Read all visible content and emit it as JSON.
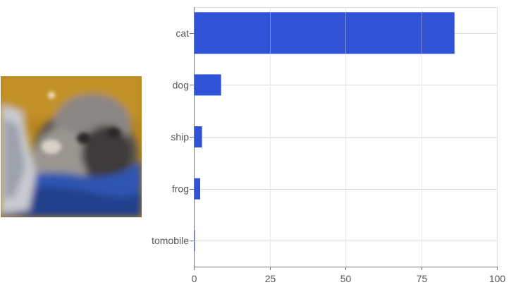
{
  "chart_data": {
    "type": "bar",
    "orientation": "horizontal",
    "categories": [
      "cat",
      "dog",
      "ship",
      "frog",
      "tomobile"
    ],
    "values": [
      86,
      9,
      2.7,
      2.1,
      0.3
    ],
    "xlim": [
      0,
      100
    ],
    "xticks": [
      0,
      25,
      50,
      75,
      100
    ],
    "grid": true,
    "bar_color": "#3052d6",
    "grid_color": "#dddddd",
    "axis_color": "#777777",
    "title": "",
    "xlabel": "",
    "ylabel": ""
  },
  "thumbnail": {
    "subject": "cat-photo",
    "colors": {
      "background": "#b8861e",
      "blanket": "#2f55b0",
      "fur": "#7d7d80"
    }
  }
}
